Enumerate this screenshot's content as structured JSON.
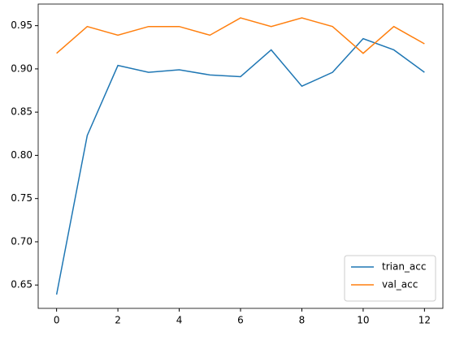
{
  "chart_data": {
    "type": "line",
    "x": [
      0,
      1,
      2,
      3,
      4,
      5,
      6,
      7,
      8,
      9,
      10,
      11,
      12
    ],
    "series": [
      {
        "name": "trian_acc",
        "color": "#1f77b4",
        "values": [
          0.639,
          0.823,
          0.904,
          0.896,
          0.899,
          0.893,
          0.891,
          0.922,
          0.88,
          0.896,
          0.935,
          0.922,
          0.896
        ]
      },
      {
        "name": "val_acc",
        "color": "#ff7f0e",
        "values": [
          0.918,
          0.949,
          0.939,
          0.949,
          0.949,
          0.939,
          0.959,
          0.949,
          0.959,
          0.949,
          0.918,
          0.949,
          0.929
        ]
      }
    ],
    "xlim": [
      -0.6,
      12.6
    ],
    "xticks": [
      0,
      2,
      4,
      6,
      8,
      10,
      12
    ],
    "ylim": [
      0.623,
      0.975
    ],
    "yticks": [
      0.65,
      {
        "value": 0.7,
        "label": "0.70"
      },
      0.75,
      {
        "value": 0.8,
        "label": "0.80"
      },
      0.85,
      {
        "value": 0.9,
        "label": "0.90"
      },
      0.95
    ],
    "grid": false,
    "legend": "lower-right"
  }
}
